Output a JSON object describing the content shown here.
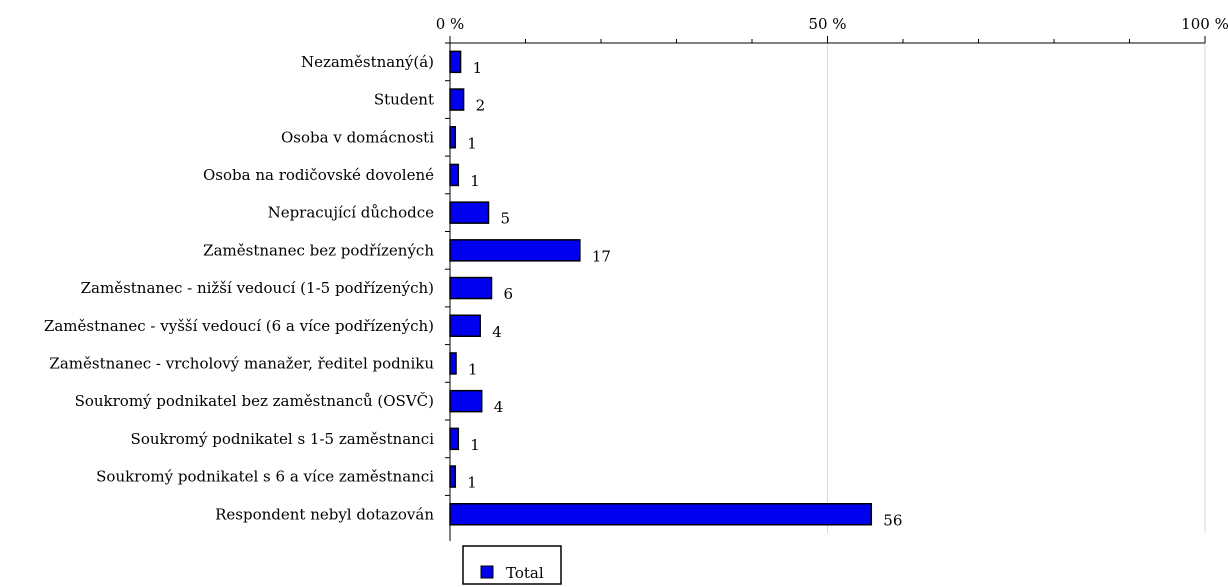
{
  "chart_data": {
    "type": "bar",
    "orientation": "horizontal",
    "categories": [
      "Nezaměstnaný(á)",
      "Student",
      "Osoba v domácnosti",
      "Osoba na rodičovské dovolené",
      "Nepracující důchodce",
      "Zaměstnanec bez podřízených",
      "Zaměstnanec - nižší vedoucí (1-5 podřízených)",
      "Zaměstnanec - vyšší vedoucí (6 a více podřízených)",
      "Zaměstnanec - vrcholový manažer, ředitel podniku",
      "Soukromý podnikatel bez zaměstnanců (OSVČ)",
      "Soukromý podnikatel s 1-5 zaměstnanci",
      "Soukromý podnikatel s 6 a více zaměstnanci",
      "Respondent nebyl dotazován"
    ],
    "series": [
      {
        "name": "Total",
        "values": [
          1.4,
          1.8,
          0.7,
          1.1,
          5.1,
          17.2,
          5.5,
          4.0,
          0.8,
          4.2,
          1.1,
          0.7,
          55.8
        ],
        "labels": [
          "1",
          "2",
          "1",
          "1",
          "5",
          "17",
          "6",
          "4",
          "1",
          "4",
          "1",
          "1",
          "56"
        ],
        "color": "#0000ee"
      }
    ],
    "xlim": [
      0,
      100
    ],
    "ticks": [
      {
        "value": 0,
        "label": "0 %"
      },
      {
        "value": 50,
        "label": "50 %"
      },
      {
        "value": 100,
        "label": "100 %"
      }
    ],
    "minor_ticks": [
      10,
      20,
      30,
      40,
      60,
      70,
      80,
      90
    ],
    "axis_position": "top",
    "grid": true,
    "legend_position": "bottom-left",
    "colors": {
      "bar_fill": "#0000ee",
      "bar_stroke": "#000000",
      "gridline": "#d8d8d8",
      "axis": "#000000"
    }
  }
}
